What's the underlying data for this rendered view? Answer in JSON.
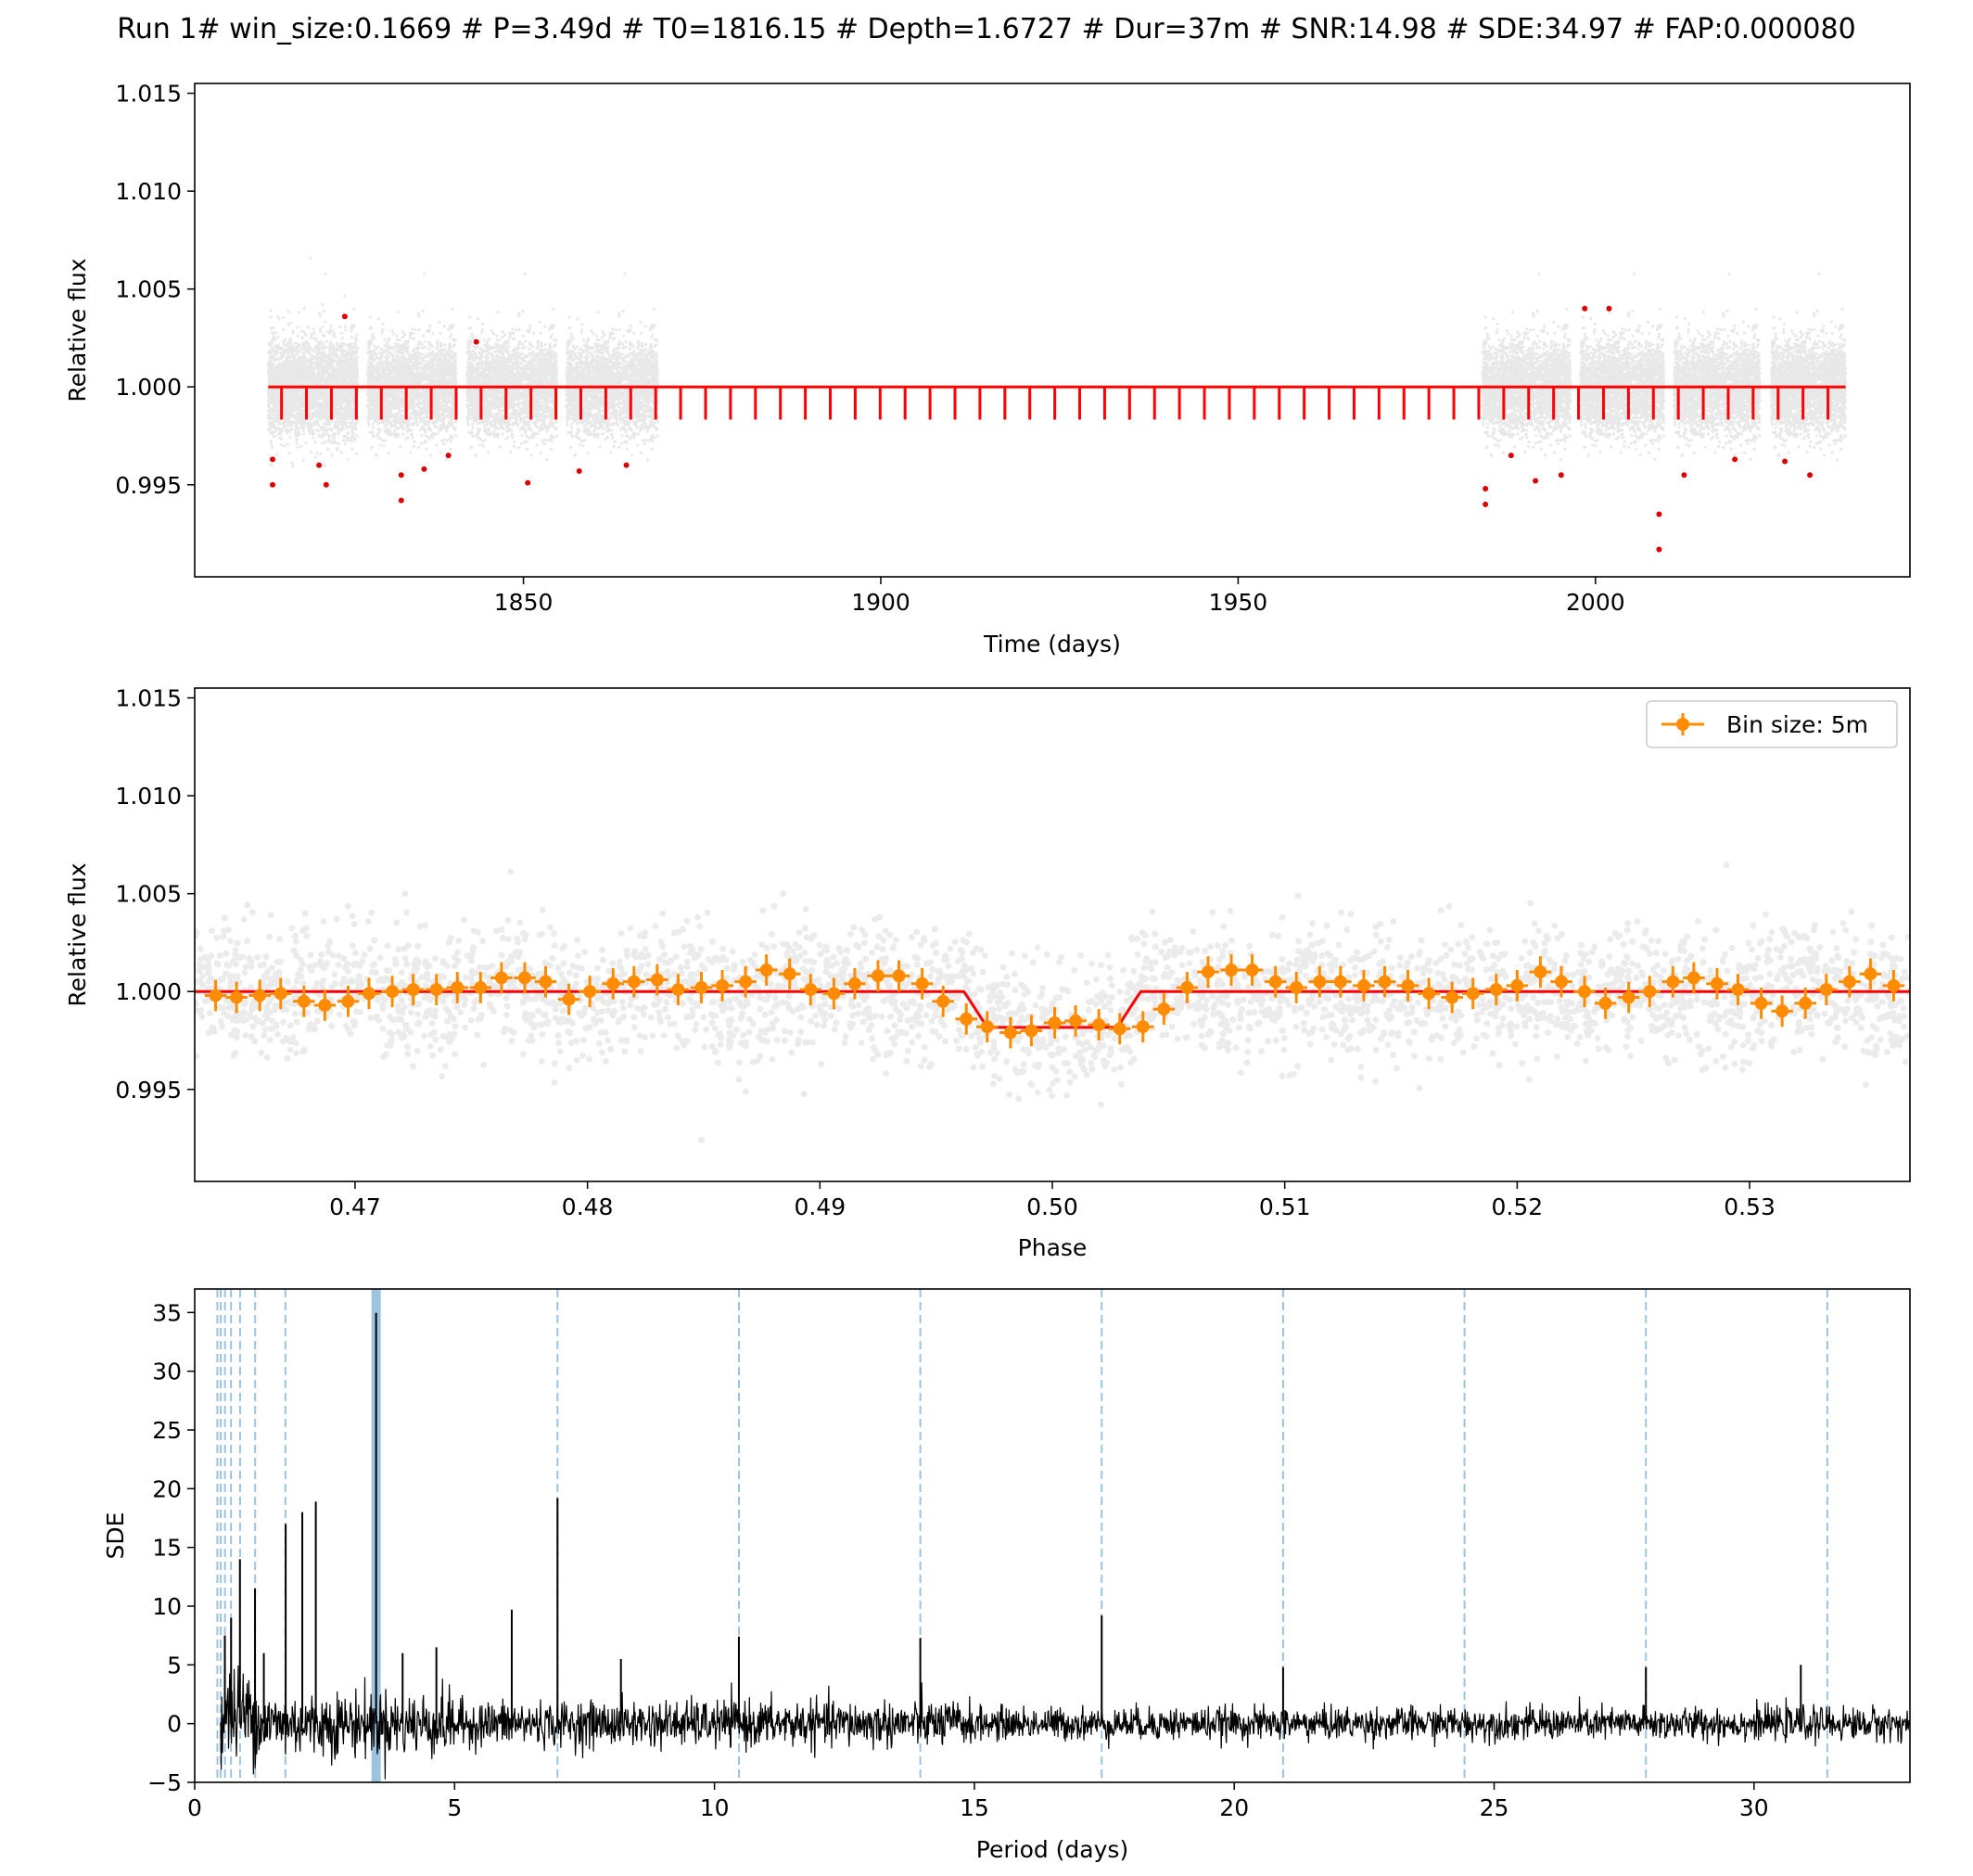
{
  "title": "Run 1# win_size:0.1669 # P=3.49d # T0=1816.15 # Depth=1.6727 # Dur=37m # SNR:14.98 # SDE:34.97 # FAP:0.000080",
  "colors": {
    "data_points": "#000000",
    "in_transit_points": "#dd0000",
    "model": "#ff0000",
    "binned": "#ff8c00",
    "harmonic_lines": "#9cc3e0",
    "periodogram": "#000000",
    "axes": "#000000"
  },
  "chart_data": [
    {
      "type": "scatter",
      "panel": "light-curve",
      "title": "",
      "xlabel": "Time (days)",
      "ylabel": "Relative flux",
      "xlim": [
        1804,
        2044
      ],
      "ylim": [
        0.9903,
        1.0155
      ],
      "xticks": [
        1850,
        1900,
        1950,
        2000
      ],
      "xticklabels": [
        "1850",
        "1900",
        "1950",
        "2000"
      ],
      "yticks": [
        0.995,
        1.0,
        1.005,
        1.01,
        1.015
      ],
      "yticklabels": [
        "0.995",
        "1.000",
        "1.005",
        "1.010",
        "1.015"
      ],
      "segments": [
        [
          1814.3,
          1826.8
        ],
        [
          1828.2,
          1840.6
        ],
        [
          1842.1,
          1854.7
        ],
        [
          1856.0,
          1868.8
        ],
        [
          1984.2,
          1996.5
        ],
        [
          1997.9,
          2009.6
        ],
        [
          2011.0,
          2023.0
        ],
        [
          2024.6,
          2035.0
        ]
      ],
      "flux_noise_sigma": 0.0012,
      "series": [
        {
          "kind": "transit-model",
          "baseline": 1.0,
          "depth": 0.00167,
          "period": 3.49,
          "t0": 1816.15,
          "t_start": 1814.3,
          "t_end": 2035.0
        }
      ],
      "in_transit_points": [
        {
          "x": 1814.9,
          "y": 0.9963
        },
        {
          "x": 1814.9,
          "y": 0.995
        },
        {
          "x": 1821.4,
          "y": 0.996
        },
        {
          "x": 1822.4,
          "y": 0.995
        },
        {
          "x": 1825.0,
          "y": 1.0036
        },
        {
          "x": 1832.9,
          "y": 0.9942
        },
        {
          "x": 1832.9,
          "y": 0.9955
        },
        {
          "x": 1836.1,
          "y": 0.9958
        },
        {
          "x": 1839.5,
          "y": 0.9965
        },
        {
          "x": 1843.4,
          "y": 1.0023
        },
        {
          "x": 1850.6,
          "y": 0.9951
        },
        {
          "x": 1857.8,
          "y": 0.9957
        },
        {
          "x": 1864.4,
          "y": 0.996
        },
        {
          "x": 1984.6,
          "y": 0.994
        },
        {
          "x": 1984.6,
          "y": 0.9948
        },
        {
          "x": 1988.2,
          "y": 0.9965
        },
        {
          "x": 1991.6,
          "y": 0.9952
        },
        {
          "x": 1995.2,
          "y": 0.9955
        },
        {
          "x": 1998.5,
          "y": 1.004
        },
        {
          "x": 2001.9,
          "y": 1.004
        },
        {
          "x": 2008.9,
          "y": 0.9935
        },
        {
          "x": 2008.9,
          "y": 0.9917
        },
        {
          "x": 2012.4,
          "y": 0.9955
        },
        {
          "x": 2019.5,
          "y": 0.9963
        },
        {
          "x": 2026.5,
          "y": 0.9962
        },
        {
          "x": 2030.0,
          "y": 0.9955
        }
      ]
    },
    {
      "type": "scatter",
      "panel": "phase-fold",
      "title": "",
      "xlabel": "Phase",
      "ylabel": "Relative flux",
      "xlim": [
        0.4631,
        0.5369
      ],
      "ylim": [
        0.9903,
        1.0155
      ],
      "xticks": [
        0.47,
        0.48,
        0.49,
        0.5,
        0.51,
        0.52,
        0.53
      ],
      "xticklabels": [
        "0.47",
        "0.48",
        "0.49",
        "0.50",
        "0.51",
        "0.52",
        "0.53"
      ],
      "yticks": [
        0.995,
        1.0,
        1.005,
        1.01,
        1.015
      ],
      "yticklabels": [
        "0.995",
        "1.000",
        "1.005",
        "1.010",
        "1.015"
      ],
      "legend": {
        "placement": "top-right",
        "label": "Bin size: 5m"
      },
      "model": {
        "baseline": 1.0,
        "depth": 0.00183,
        "ingress_start": 0.4962,
        "ingress_end": 0.4972,
        "egress_start": 0.5028,
        "egress_end": 0.5038
      },
      "flux_noise_sigma": 0.0016,
      "series": [
        {
          "name": "Bin size: 5m",
          "x": [
            0.464,
            0.4649,
            0.4659,
            0.4668,
            0.4678,
            0.4687,
            0.4697,
            0.4706,
            0.4716,
            0.4725,
            0.4735,
            0.4744,
            0.4754,
            0.4763,
            0.4773,
            0.4782,
            0.4792,
            0.4801,
            0.4811,
            0.482,
            0.483,
            0.4839,
            0.4849,
            0.4858,
            0.4868,
            0.4877,
            0.4887,
            0.4896,
            0.4906,
            0.4915,
            0.4925,
            0.4934,
            0.4944,
            0.4953,
            0.4963,
            0.4972,
            0.4982,
            0.4991,
            0.5001,
            0.501,
            0.502,
            0.5029,
            0.5039,
            0.5048,
            0.5058,
            0.5067,
            0.5077,
            0.5086,
            0.5096,
            0.5105,
            0.5115,
            0.5124,
            0.5134,
            0.5143,
            0.5153,
            0.5162,
            0.5172,
            0.5181,
            0.5191,
            0.52,
            0.521,
            0.5219,
            0.5229,
            0.5238,
            0.5248,
            0.5257,
            0.5267,
            0.5276,
            0.5286,
            0.5295,
            0.5305,
            0.5314,
            0.5324,
            0.5333,
            0.5343,
            0.5352,
            0.5362
          ],
          "y": [
            0.9998,
            0.9997,
            0.9998,
            0.9999,
            0.9995,
            0.9993,
            0.9995,
            0.9999,
            1.0,
            1.0001,
            1.0001,
            1.0002,
            1.0002,
            1.0007,
            1.0007,
            1.0005,
            0.9996,
            1.0,
            1.0004,
            1.0005,
            1.0006,
            1.0001,
            1.0002,
            1.0003,
            1.0005,
            1.0011,
            1.0009,
            1.0001,
            0.9999,
            1.0004,
            1.0008,
            1.0008,
            1.0004,
            0.9995,
            0.9986,
            0.9982,
            0.9979,
            0.998,
            0.9984,
            0.9985,
            0.9983,
            0.9981,
            0.9982,
            0.9991,
            1.0002,
            1.001,
            1.0011,
            1.0011,
            1.0005,
            1.0002,
            1.0005,
            1.0005,
            1.0003,
            1.0005,
            1.0003,
            0.9999,
            0.9997,
            0.9999,
            1.0001,
            1.0003,
            1.001,
            1.0005,
            1.0,
            0.9994,
            0.9997,
            1.0,
            1.0005,
            1.0007,
            1.0004,
            1.0001,
            0.9994,
            0.999,
            0.9994,
            1.0001,
            1.0005,
            1.0009,
            1.0003
          ],
          "yerr": 0.0008,
          "xerr": 0.00047
        }
      ]
    },
    {
      "type": "line",
      "panel": "periodogram",
      "title": "",
      "xlabel": "Period (days)",
      "ylabel": "SDE",
      "xlim": [
        0,
        33
      ],
      "ylim": [
        -5,
        37
      ],
      "xticks": [
        0,
        5,
        10,
        15,
        20,
        25,
        30
      ],
      "xticklabels": [
        "0",
        "5",
        "10",
        "15",
        "20",
        "25",
        "30"
      ],
      "yticks": [
        -5,
        0,
        5,
        10,
        15,
        20,
        25,
        30,
        35
      ],
      "yticklabels": [
        "−5",
        "0",
        "5",
        "10",
        "15",
        "20",
        "25",
        "30",
        "35"
      ],
      "best_period": 3.49,
      "best_sde": 34.97,
      "harmonic_lines": [
        0.436,
        0.499,
        0.582,
        0.698,
        0.873,
        1.163,
        1.745,
        6.98,
        10.47,
        13.96,
        17.45,
        20.94,
        24.43,
        27.92,
        31.41
      ],
      "period_range": [
        0.5,
        33
      ],
      "peaks": [
        {
          "x": 0.58,
          "y": 7.5
        },
        {
          "x": 0.7,
          "y": 9.0
        },
        {
          "x": 0.87,
          "y": 14.0
        },
        {
          "x": 1.16,
          "y": 11.5
        },
        {
          "x": 1.33,
          "y": 6.0
        },
        {
          "x": 1.75,
          "y": 17.0
        },
        {
          "x": 2.07,
          "y": 18.0
        },
        {
          "x": 2.33,
          "y": 18.9
        },
        {
          "x": 3.49,
          "y": 34.97
        },
        {
          "x": 4.0,
          "y": 6.0
        },
        {
          "x": 4.65,
          "y": 6.5
        },
        {
          "x": 6.1,
          "y": 9.7
        },
        {
          "x": 6.98,
          "y": 19.2
        },
        {
          "x": 8.2,
          "y": 5.5
        },
        {
          "x": 10.47,
          "y": 7.4
        },
        {
          "x": 13.96,
          "y": 7.3
        },
        {
          "x": 17.45,
          "y": 9.2
        },
        {
          "x": 20.94,
          "y": 4.8
        },
        {
          "x": 27.92,
          "y": 4.8
        },
        {
          "x": 30.9,
          "y": 5.0
        }
      ]
    }
  ]
}
